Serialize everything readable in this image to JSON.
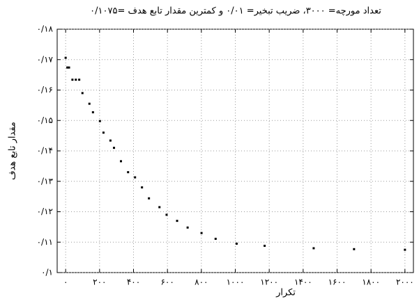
{
  "chart_data": {
    "type": "scatter",
    "title": "تعداد مورچه= ۳۰۰۰، ضریب تبخیر= ۰/۰۱ و کمترین مقدار تابع هدف =۰/۱۰۷۵",
    "x_label": "تکرار",
    "y_label": "مقدار تابع هدف",
    "color": "#000000",
    "grid": true,
    "xlim": [
      -50,
      2050
    ],
    "ylim": [
      0.1,
      0.18
    ],
    "xticks": [
      {
        "value": 0,
        "label": "۰"
      },
      {
        "value": 200,
        "label": "۲۰۰"
      },
      {
        "value": 400,
        "label": "۴۰۰"
      },
      {
        "value": 600,
        "label": "۶۰۰"
      },
      {
        "value": 800,
        "label": "۸۰۰"
      },
      {
        "value": 1000,
        "label": "۱۰۰۰"
      },
      {
        "value": 1200,
        "label": "۱۲۰۰"
      },
      {
        "value": 1400,
        "label": "۱۴۰۰"
      },
      {
        "value": 1600,
        "label": "۱۶۰۰"
      },
      {
        "value": 1800,
        "label": "۱۸۰۰"
      },
      {
        "value": 2000,
        "label": "۲۰۰۰"
      }
    ],
    "yticks": [
      {
        "value": 0.1,
        "label": "۰/۱"
      },
      {
        "value": 0.11,
        "label": "۰/۱۱"
      },
      {
        "value": 0.12,
        "label": "۰/۱۲"
      },
      {
        "value": 0.13,
        "label": "۰/۱۳"
      },
      {
        "value": 0.14,
        "label": "۰/۱۴"
      },
      {
        "value": 0.15,
        "label": "۰/۱۵"
      },
      {
        "value": 0.16,
        "label": "۰/۱۶"
      },
      {
        "value": 0.17,
        "label": "۰/۱۷"
      },
      {
        "value": 0.18,
        "label": "۰/۱۸"
      }
    ],
    "x": [
      0,
      10,
      20,
      40,
      60,
      80,
      99,
      140,
      161,
      202,
      223,
      264,
      285,
      326,
      368,
      409,
      450,
      491,
      553,
      595,
      657,
      719,
      801,
      884,
      1008,
      1173,
      1462,
      1700,
      2000
    ],
    "values": [
      0.1706,
      0.1674,
      0.1674,
      0.1634,
      0.1634,
      0.1634,
      0.159,
      0.1555,
      0.1527,
      0.1498,
      0.146,
      0.1434,
      0.141,
      0.1366,
      0.133,
      0.1313,
      0.128,
      0.1244,
      0.1215,
      0.119,
      0.117,
      0.1148,
      0.113,
      0.1111,
      0.1095,
      0.1088,
      0.108,
      0.1077,
      0.1075
    ]
  }
}
